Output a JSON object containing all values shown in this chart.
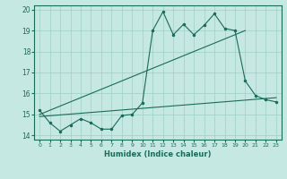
{
  "xlabel": "Humidex (Indice chaleur)",
  "xlim": [
    -0.5,
    23.5
  ],
  "ylim": [
    13.8,
    20.2
  ],
  "yticks": [
    14,
    15,
    16,
    17,
    18,
    19,
    20
  ],
  "xticks": [
    0,
    1,
    2,
    3,
    4,
    5,
    6,
    7,
    8,
    9,
    10,
    11,
    12,
    13,
    14,
    15,
    16,
    17,
    18,
    19,
    20,
    21,
    22,
    23
  ],
  "background_color": "#c5e8e2",
  "grid_color": "#9fcfc8",
  "line_color": "#1a6b5a",
  "line1_x": [
    0,
    1,
    2,
    3,
    4,
    5,
    6,
    7,
    8,
    9,
    10,
    11,
    12,
    13,
    14,
    15,
    16,
    17,
    18,
    19,
    20,
    21,
    22,
    23
  ],
  "line1_y": [
    15.2,
    14.6,
    14.2,
    14.5,
    14.8,
    14.6,
    14.3,
    14.3,
    14.95,
    15.0,
    15.55,
    19.0,
    19.9,
    18.8,
    19.3,
    18.8,
    19.25,
    19.8,
    19.1,
    19.0,
    16.6,
    15.9,
    15.7,
    15.6
  ],
  "line2_x": [
    0,
    23
  ],
  "line2_y": [
    14.9,
    15.8
  ],
  "line3_x": [
    0,
    20
  ],
  "line3_y": [
    15.0,
    19.0
  ]
}
